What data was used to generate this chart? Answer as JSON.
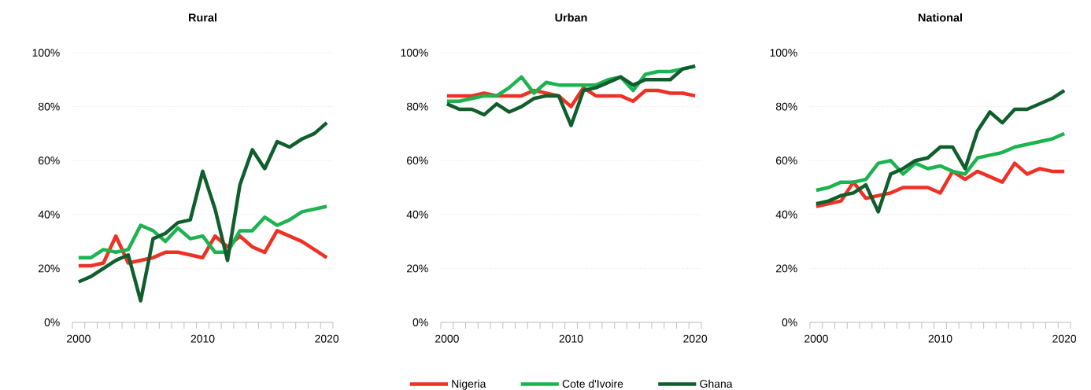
{
  "chart_data": [
    {
      "type": "line",
      "title": "Rural",
      "x": [
        2000,
        2001,
        2002,
        2003,
        2004,
        2005,
        2006,
        2007,
        2008,
        2009,
        2010,
        2011,
        2012,
        2013,
        2014,
        2015,
        2016,
        2017,
        2018,
        2019,
        2020
      ],
      "xlim": [
        1999.5,
        2020.5
      ],
      "xticks": [
        2000,
        2010,
        2020
      ],
      "ylim": [
        0,
        100
      ],
      "yticks": [
        {
          "value": 0,
          "label": "0%"
        },
        {
          "value": 20,
          "label": "20%"
        },
        {
          "value": 40,
          "label": "40%"
        },
        {
          "value": 60,
          "label": "60%"
        },
        {
          "value": 80,
          "label": "80%"
        },
        {
          "value": 100,
          "label": "100%"
        }
      ],
      "grid": "y",
      "series": [
        {
          "color": "#ee3124",
          "values": [
            21,
            21,
            22,
            32,
            22,
            23,
            24,
            26,
            26,
            25,
            24,
            32,
            28,
            32,
            28,
            26,
            34,
            32,
            30,
            27,
            24
          ]
        },
        {
          "color": "#1db350",
          "values": [
            24,
            24,
            27,
            26,
            27,
            36,
            34,
            30,
            35,
            31,
            32,
            26,
            26,
            34,
            34,
            39,
            36,
            38,
            41,
            42,
            43
          ]
        },
        {
          "color": "#0f5e2c",
          "values": [
            15,
            17,
            20,
            23,
            25,
            8,
            31,
            33,
            37,
            38,
            56,
            42,
            23,
            51,
            64,
            57,
            67,
            65,
            68,
            70,
            74
          ]
        }
      ]
    },
    {
      "type": "line",
      "title": "Urban",
      "x": [
        2000,
        2001,
        2002,
        2003,
        2004,
        2005,
        2006,
        2007,
        2008,
        2009,
        2010,
        2011,
        2012,
        2013,
        2014,
        2015,
        2016,
        2017,
        2018,
        2019,
        2020
      ],
      "xlim": [
        1999.5,
        2020.5
      ],
      "xticks": [
        2000,
        2010,
        2020
      ],
      "ylim": [
        0,
        100
      ],
      "yticks": [
        {
          "value": 0,
          "label": "0%"
        },
        {
          "value": 20,
          "label": "20%"
        },
        {
          "value": 40,
          "label": "40%"
        },
        {
          "value": 60,
          "label": "60%"
        },
        {
          "value": 80,
          "label": "80%"
        },
        {
          "value": 100,
          "label": "100%"
        }
      ],
      "grid": "y",
      "legend": "bottom",
      "series": [
        {
          "name": "Nigeria",
          "color": "#ee3124",
          "values": [
            84,
            84,
            84,
            85,
            84,
            84,
            84,
            86,
            85,
            84,
            80,
            87,
            84,
            84,
            84,
            82,
            86,
            86,
            85,
            85,
            84
          ]
        },
        {
          "name": "Cote d'Ivoire",
          "color": "#1db350",
          "values": [
            82,
            82,
            83,
            84,
            84,
            87,
            91,
            85,
            89,
            88,
            88,
            88,
            88,
            90,
            91,
            86,
            92,
            93,
            93,
            94,
            95
          ]
        },
        {
          "name": "Ghana",
          "color": "#0f5e2c",
          "values": [
            81,
            79,
            79,
            77,
            81,
            78,
            80,
            83,
            84,
            84,
            73,
            86,
            87,
            89,
            91,
            88,
            90,
            90,
            90,
            94,
            95
          ]
        }
      ]
    },
    {
      "type": "line",
      "title": "National",
      "x": [
        2000,
        2001,
        2002,
        2003,
        2004,
        2005,
        2006,
        2007,
        2008,
        2009,
        2010,
        2011,
        2012,
        2013,
        2014,
        2015,
        2016,
        2017,
        2018,
        2019,
        2020
      ],
      "xlim": [
        1999.5,
        2020.5
      ],
      "xticks": [
        2000,
        2010,
        2020
      ],
      "ylim": [
        0,
        100
      ],
      "yticks": [
        {
          "value": 0,
          "label": "0%"
        },
        {
          "value": 20,
          "label": "20%"
        },
        {
          "value": 40,
          "label": "40%"
        },
        {
          "value": 60,
          "label": "60%"
        },
        {
          "value": 80,
          "label": "80%"
        },
        {
          "value": 100,
          "label": "100%"
        }
      ],
      "grid": "y",
      "series": [
        {
          "color": "#ee3124",
          "values": [
            43,
            44,
            45,
            52,
            46,
            47,
            48,
            50,
            50,
            50,
            48,
            56,
            53,
            56,
            54,
            52,
            59,
            55,
            57,
            56,
            56
          ]
        },
        {
          "color": "#1db350",
          "values": [
            49,
            50,
            52,
            52,
            53,
            59,
            60,
            55,
            59,
            57,
            58,
            56,
            55,
            61,
            62,
            63,
            65,
            66,
            67,
            68,
            70
          ]
        },
        {
          "color": "#0f5e2c",
          "values": [
            44,
            45,
            47,
            48,
            51,
            41,
            55,
            57,
            60,
            61,
            65,
            65,
            57,
            71,
            78,
            74,
            79,
            79,
            81,
            83,
            86
          ]
        }
      ]
    }
  ]
}
